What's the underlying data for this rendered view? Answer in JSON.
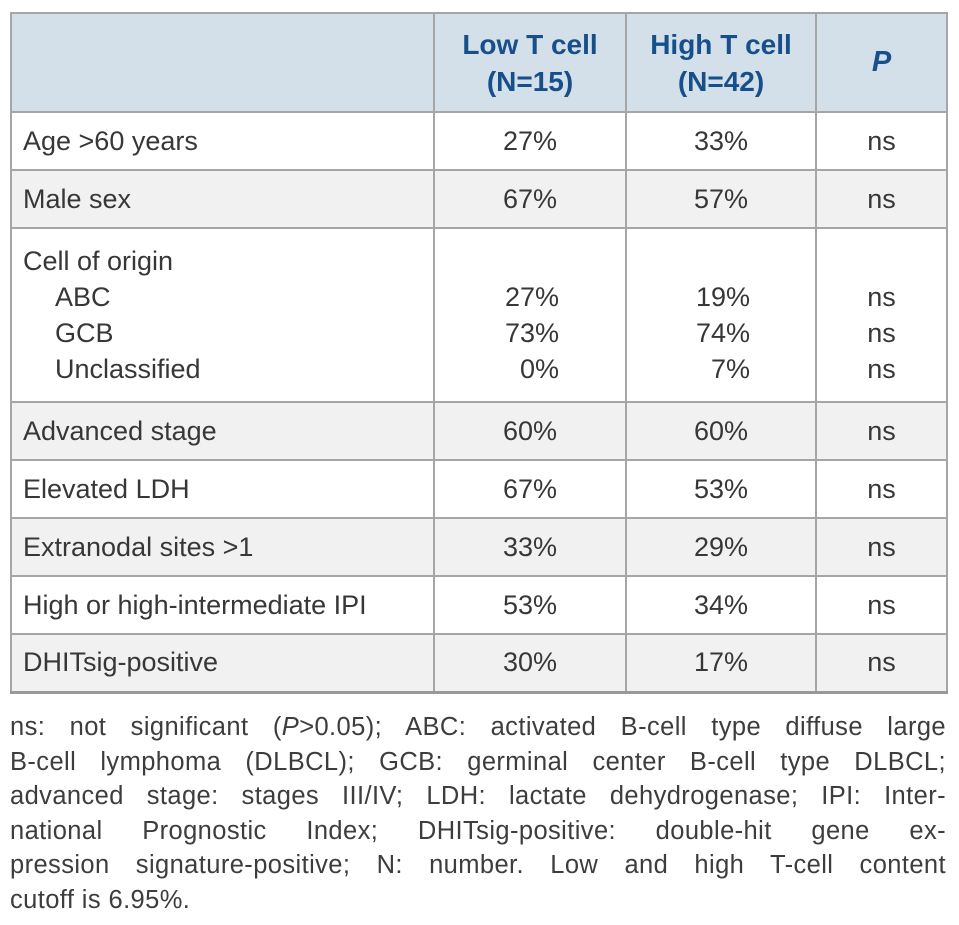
{
  "colors": {
    "header_background": "#d3dfe9",
    "header_text": "#174f8b",
    "stripe_background": "#f1f1f1",
    "border": "#a6a6a6",
    "body_text": "#373737",
    "footnote_text": "#3d3d3d"
  },
  "table": {
    "header": {
      "label_col": "",
      "low_line1": "Low T cell",
      "low_line2": "(N=15)",
      "high_line1": "High T cell",
      "high_line2": "(N=42)",
      "p_label": "P"
    },
    "rows": [
      {
        "label": "Age >60 years",
        "low": "27%",
        "high": "33%",
        "p": "ns"
      },
      {
        "label": "Male sex",
        "low": "67%",
        "high": "57%",
        "p": "ns"
      },
      {
        "label": "Cell of origin",
        "sub": [
          {
            "label": "ABC",
            "low": "27%",
            "high": "19%",
            "p": "ns"
          },
          {
            "label": "GCB",
            "low": "73%",
            "high": "74%",
            "p": "ns"
          },
          {
            "label": "Unclassified",
            "low": "0%",
            "high": "7%",
            "p": "ns"
          }
        ]
      },
      {
        "label": "Advanced stage",
        "low": "60%",
        "high": "60%",
        "p": "ns"
      },
      {
        "label": "Elevated LDH",
        "low": "67%",
        "high": "53%",
        "p": "ns"
      },
      {
        "label": "Extranodal sites >1",
        "low": "33%",
        "high": "29%",
        "p": "ns"
      },
      {
        "label": "High or high-intermediate IPI",
        "low": "53%",
        "high": "34%",
        "p": "ns"
      },
      {
        "label": "DHITsig-positive",
        "low": "30%",
        "high": "17%",
        "p": "ns"
      }
    ]
  },
  "footnote": {
    "line1_pre": "ns: not significant (",
    "line1_italic": "P",
    "line1_post": ">0.05); ABC: activated B-cell type diffuse large",
    "line2": "B-cell lymphoma (DLBCL); GCB: germinal center B-cell type DLBCL;",
    "line3": "advanced stage: stages III/IV; LDH: lactate dehydrogenase; IPI: Inter-",
    "line4": "national Prognostic Index; DHITsig-positive: double-hit gene ex-",
    "line5": "pression signature-positive; N: number. Low and high T-cell content",
    "line6": "cutoff is 6.95%."
  }
}
